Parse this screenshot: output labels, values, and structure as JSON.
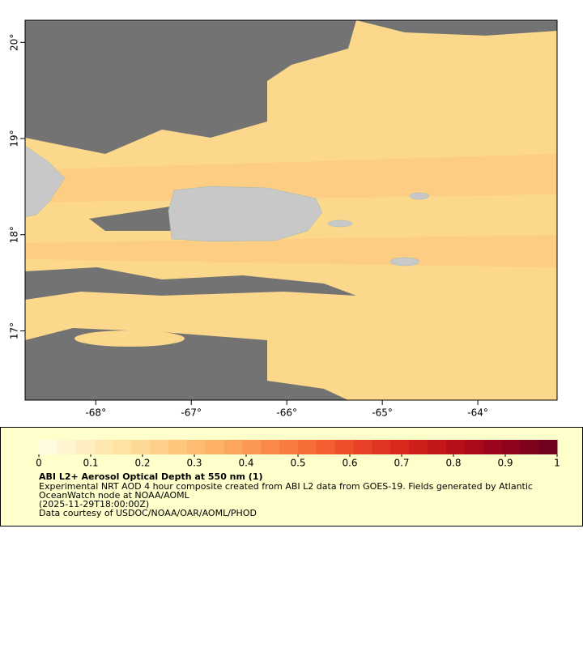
{
  "chart_data": {
    "type": "map",
    "xlim": [
      -68.74,
      -63.17
    ],
    "ylim": [
      16.28,
      20.23
    ],
    "xticks": [
      {
        "value": -68,
        "label": "-68°"
      },
      {
        "value": -67,
        "label": "-67°"
      },
      {
        "value": -66,
        "label": "-66°"
      },
      {
        "value": -65,
        "label": "-65°"
      },
      {
        "value": -64,
        "label": "-64°"
      }
    ],
    "yticks": [
      {
        "value": 17,
        "label": "17°"
      },
      {
        "value": 18,
        "label": "18°"
      },
      {
        "value": 19,
        "label": "19°"
      },
      {
        "value": 20,
        "label": "20°"
      }
    ],
    "colorbar": {
      "lim": [
        0,
        1
      ],
      "ticks": [
        0,
        0.1,
        0.2,
        0.3,
        0.4,
        0.5,
        0.6,
        0.7,
        0.8,
        0.9,
        1
      ],
      "colors": [
        "#fffbe0",
        "#fff5cf",
        "#ffeebf",
        "#ffe8b0",
        "#ffe1a2",
        "#fed995",
        "#fed089",
        "#fdc67d",
        "#fdbc72",
        "#fdb167",
        "#fca55d",
        "#fc9852",
        "#fb8a48",
        "#f97c3f",
        "#f66d37",
        "#f25e30",
        "#ed4f2a",
        "#e74225",
        "#e03520",
        "#d8291c",
        "#cf1f1a",
        "#c41719",
        "#b81019",
        "#aa0a1a",
        "#9c061c",
        "#8e041d",
        "#80021e",
        "#72001f"
      ]
    },
    "title": "ABI L2+ Aerosol Optical Depth at 550 nm (1)",
    "notes": [
      "Experimental NRT AOD 4 hour composite created from ABI L2 data from GOES-19. Fields generated by Atlantic",
      "OceanWatch node at NOAA/AOML",
      "(2025-11-29T18:00:00Z)",
      "Data courtesy of USDOC/NOAA/OAR/AOML/PHOD"
    ]
  }
}
